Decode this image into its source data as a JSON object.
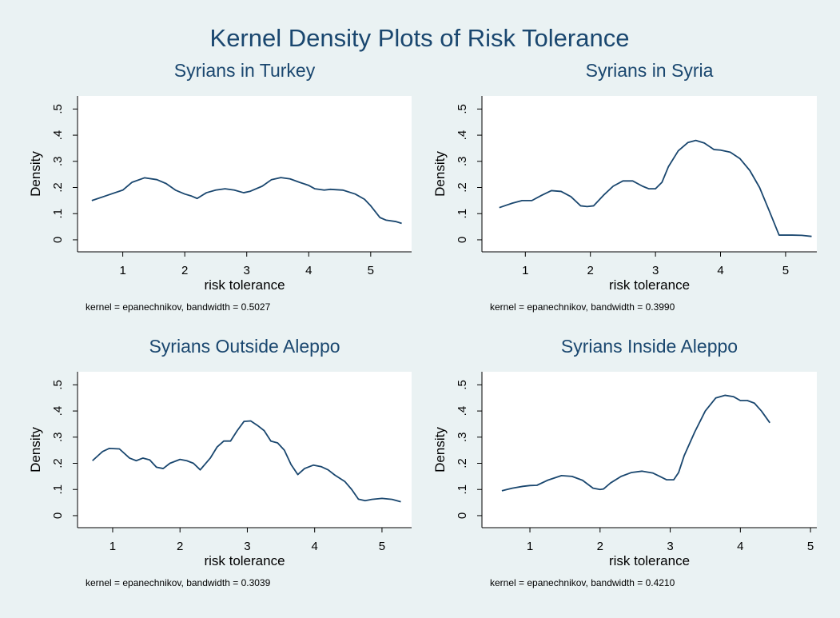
{
  "title": "Kernel Density Plots of Risk Tolerance",
  "chart_data": [
    {
      "type": "line",
      "title": "Syrians in Turkey",
      "xlabel": "risk tolerance",
      "ylabel": "Density",
      "note": "kernel = epanechnikov, bandwidth = 0.5027",
      "color": "#1a476f",
      "xlim": [
        0.27,
        5.66
      ],
      "ylim": [
        -0.046,
        0.55
      ],
      "xticks": [
        1,
        2,
        3,
        4,
        5
      ],
      "yticks": [
        0,
        {
          "value": 0.1,
          "label": ".1"
        },
        {
          "value": 0.2,
          "label": ".2"
        },
        {
          "value": 0.3,
          "label": ".3"
        },
        {
          "value": 0.4,
          "label": ".4"
        },
        {
          "value": 0.5,
          "label": ".5"
        }
      ],
      "x": [
        0.5,
        0.75,
        1,
        1.15,
        1.35,
        1.55,
        1.7,
        1.85,
        2,
        2.1,
        2.2,
        2.35,
        2.5,
        2.65,
        2.8,
        2.95,
        3.05,
        3.25,
        3.4,
        3.55,
        3.7,
        3.85,
        4,
        4.1,
        4.25,
        4.35,
        4.55,
        4.75,
        4.9,
        5,
        5.15,
        5.25,
        5.4,
        5.5
      ],
      "values": [
        0.15,
        0.17,
        0.19,
        0.22,
        0.237,
        0.23,
        0.215,
        0.19,
        0.175,
        0.168,
        0.158,
        0.18,
        0.19,
        0.195,
        0.19,
        0.18,
        0.185,
        0.205,
        0.23,
        0.238,
        0.233,
        0.22,
        0.208,
        0.195,
        0.19,
        0.193,
        0.19,
        0.175,
        0.155,
        0.13,
        0.085,
        0.075,
        0.07,
        0.063
      ]
    },
    {
      "type": "line",
      "title": "Syrians in Syria",
      "xlabel": "risk tolerance",
      "ylabel": "Density",
      "note": "kernel = epanechnikov, bandwidth = 0.3990",
      "color": "#1a476f",
      "xlim": [
        0.333,
        5.48
      ],
      "ylim": [
        -0.046,
        0.55
      ],
      "xticks": [
        1,
        2,
        3,
        4,
        5
      ],
      "yticks": [
        0,
        {
          "value": 0.1,
          "label": ".1"
        },
        {
          "value": 0.2,
          "label": ".2"
        },
        {
          "value": 0.3,
          "label": ".3"
        },
        {
          "value": 0.4,
          "label": ".4"
        },
        {
          "value": 0.5,
          "label": ".5"
        }
      ],
      "x": [
        0.6,
        0.8,
        0.95,
        1.1,
        1.25,
        1.4,
        1.55,
        1.7,
        1.85,
        1.95,
        2.05,
        2.2,
        2.35,
        2.5,
        2.65,
        2.8,
        2.9,
        3,
        3.1,
        3.2,
        3.35,
        3.5,
        3.62,
        3.75,
        3.9,
        4,
        4.15,
        4.3,
        4.45,
        4.6,
        4.75,
        4.9,
        5.1,
        5.25,
        5.4
      ],
      "values": [
        0.123,
        0.14,
        0.15,
        0.15,
        0.17,
        0.188,
        0.185,
        0.165,
        0.13,
        0.127,
        0.13,
        0.17,
        0.205,
        0.225,
        0.225,
        0.205,
        0.195,
        0.195,
        0.22,
        0.28,
        0.34,
        0.372,
        0.38,
        0.37,
        0.345,
        0.343,
        0.335,
        0.31,
        0.265,
        0.2,
        0.11,
        0.018,
        0.018,
        0.017,
        0.013
      ]
    },
    {
      "type": "line",
      "title": "Syrians Outside Aleppo",
      "xlabel": "risk tolerance",
      "ylabel": "Density",
      "note": "kernel = epanechnikov, bandwidth = 0.3039",
      "color": "#1a476f",
      "xlim": [
        0.478,
        5.44
      ],
      "ylim": [
        -0.046,
        0.55
      ],
      "xticks": [
        1,
        2,
        3,
        4,
        5
      ],
      "yticks": [
        0,
        {
          "value": 0.1,
          "label": ".1"
        },
        {
          "value": 0.2,
          "label": ".2"
        },
        {
          "value": 0.3,
          "label": ".3"
        },
        {
          "value": 0.4,
          "label": ".4"
        },
        {
          "value": 0.5,
          "label": ".5"
        }
      ],
      "x": [
        0.7,
        0.85,
        0.95,
        1.1,
        1.25,
        1.35,
        1.45,
        1.55,
        1.65,
        1.75,
        1.85,
        2,
        2.1,
        2.2,
        2.3,
        2.45,
        2.55,
        2.65,
        2.75,
        2.85,
        2.95,
        3.05,
        3.15,
        3.25,
        3.35,
        3.45,
        3.55,
        3.65,
        3.75,
        3.85,
        3.98,
        4.1,
        4.2,
        4.3,
        4.45,
        4.55,
        4.65,
        4.75,
        4.85,
        5,
        5.15,
        5.28
      ],
      "values": [
        0.21,
        0.245,
        0.257,
        0.255,
        0.22,
        0.21,
        0.22,
        0.213,
        0.185,
        0.18,
        0.2,
        0.215,
        0.21,
        0.2,
        0.175,
        0.22,
        0.262,
        0.285,
        0.285,
        0.325,
        0.36,
        0.362,
        0.345,
        0.325,
        0.285,
        0.278,
        0.25,
        0.195,
        0.157,
        0.18,
        0.193,
        0.187,
        0.175,
        0.155,
        0.13,
        0.1,
        0.063,
        0.057,
        0.062,
        0.066,
        0.062,
        0.053
      ]
    },
    {
      "type": "line",
      "title": "Syrians Inside Aleppo",
      "xlabel": "risk tolerance",
      "ylabel": "Density",
      "note": "kernel = epanechnikov, bandwidth = 0.4210",
      "color": "#1a476f",
      "xlim": [
        0.316,
        5.09
      ],
      "ylim": [
        -0.046,
        0.55
      ],
      "xticks": [
        1,
        2,
        3,
        4,
        5
      ],
      "yticks": [
        0,
        {
          "value": 0.1,
          "label": ".1"
        },
        {
          "value": 0.2,
          "label": ".2"
        },
        {
          "value": 0.3,
          "label": ".3"
        },
        {
          "value": 0.4,
          "label": ".4"
        },
        {
          "value": 0.5,
          "label": ".5"
        }
      ],
      "x": [
        0.6,
        0.75,
        0.9,
        1,
        1.1,
        1.25,
        1.45,
        1.6,
        1.75,
        1.9,
        2,
        2.05,
        2.15,
        2.3,
        2.45,
        2.6,
        2.75,
        2.85,
        2.95,
        3.05,
        3.12,
        3.2,
        3.35,
        3.5,
        3.65,
        3.78,
        3.9,
        4,
        4.1,
        4.2,
        4.3,
        4.42
      ],
      "values": [
        0.095,
        0.105,
        0.112,
        0.115,
        0.116,
        0.135,
        0.153,
        0.15,
        0.135,
        0.105,
        0.1,
        0.102,
        0.125,
        0.15,
        0.165,
        0.17,
        0.163,
        0.15,
        0.137,
        0.137,
        0.165,
        0.23,
        0.32,
        0.4,
        0.45,
        0.46,
        0.455,
        0.44,
        0.44,
        0.43,
        0.4,
        0.355
      ]
    }
  ]
}
